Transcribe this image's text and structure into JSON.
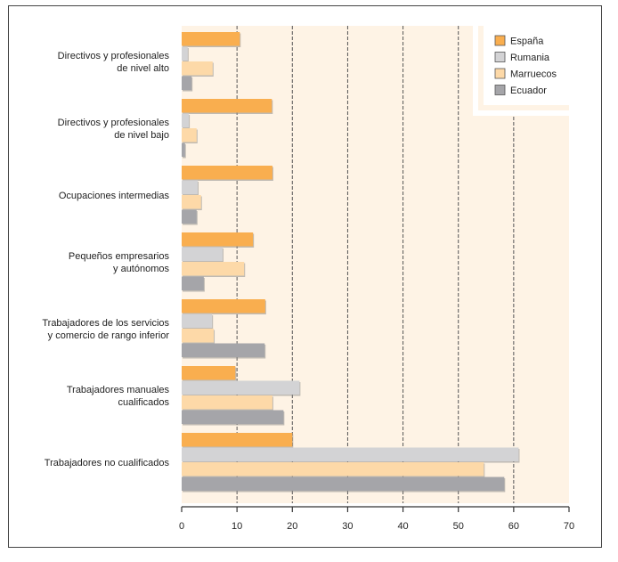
{
  "chart_data": {
    "type": "bar",
    "orientation": "horizontal",
    "title": "",
    "xlabel": "",
    "ylabel": "",
    "xlim": [
      0,
      70
    ],
    "xticks": [
      0,
      10,
      20,
      30,
      40,
      50,
      60,
      70
    ],
    "grid": "vertical dashed",
    "legend_position": "top-right",
    "categories": [
      [
        "Directivos y profesionales",
        "de nivel alto"
      ],
      [
        "Directivos y profesionales",
        "de nivel bajo"
      ],
      [
        "Ocupaciones intermedias"
      ],
      [
        "Pequeños empresarios",
        "y autónomos"
      ],
      [
        "Trabajadores de los servicios",
        "y comercio de rango inferior"
      ],
      [
        "Trabajadores manuales",
        "cualificados"
      ],
      [
        "Trabajadores no cualificados"
      ]
    ],
    "series": [
      {
        "name": "España",
        "color": "#F9AE4F",
        "values": [
          10.5,
          16.3,
          16.4,
          12.9,
          15.1,
          9.7,
          20.0
        ]
      },
      {
        "name": "Rumania",
        "color": "#D3D3D5",
        "values": [
          1.1,
          1.3,
          2.9,
          7.4,
          5.5,
          21.3,
          60.9
        ]
      },
      {
        "name": "Marruecos",
        "color": "#FDD9A8",
        "values": [
          5.6,
          2.7,
          3.5,
          11.3,
          5.8,
          16.4,
          54.6
        ]
      },
      {
        "name": "Ecuador",
        "color": "#A5A5A9",
        "values": [
          1.8,
          0.6,
          2.7,
          4.0,
          15.0,
          18.4,
          58.3
        ]
      }
    ]
  },
  "colors": {
    "plot_background": "#FEF3E5",
    "gridline": "#555555",
    "axis": "#333333"
  }
}
